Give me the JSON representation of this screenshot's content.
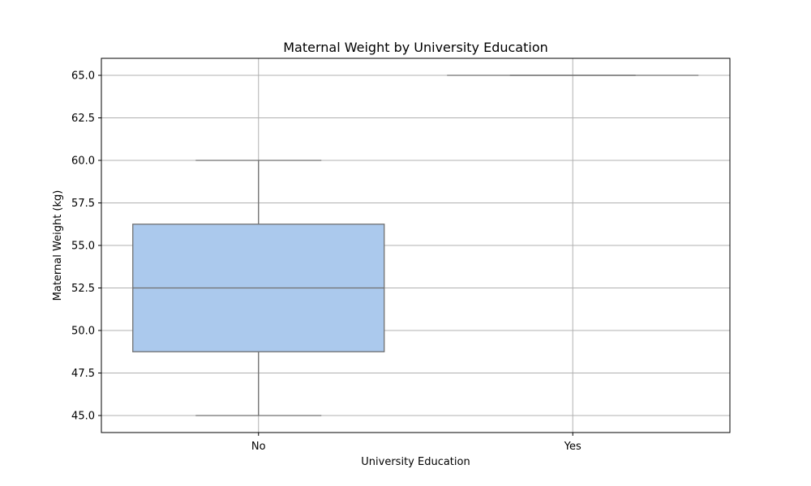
{
  "chart_data": {
    "type": "box",
    "title": "Maternal Weight by University Education",
    "xlabel": "University Education",
    "ylabel": "Maternal Weight (kg)",
    "ylim": [
      44.0,
      66.0
    ],
    "yticks": [
      45.0,
      47.5,
      50.0,
      52.5,
      55.0,
      57.5,
      60.0,
      62.5,
      65.0
    ],
    "ytick_labels": [
      "45.0",
      "47.5",
      "50.0",
      "52.5",
      "55.0",
      "57.5",
      "60.0",
      "62.5",
      "65.0"
    ],
    "categories": [
      "No",
      "Yes"
    ],
    "grid": true,
    "boxes": [
      {
        "category": "No",
        "whisker_low": 45.0,
        "q1": 48.75,
        "median": 52.5,
        "q3": 56.25,
        "whisker_high": 60.0
      },
      {
        "category": "Yes",
        "whisker_low": 65.0,
        "q1": 65.0,
        "median": 65.0,
        "q3": 65.0,
        "whisker_high": 65.0
      }
    ],
    "colors": {
      "box_fill": "#abc9ed",
      "box_edge": "#707070",
      "grid": "#b0b0b0",
      "axes": "#000000"
    }
  }
}
